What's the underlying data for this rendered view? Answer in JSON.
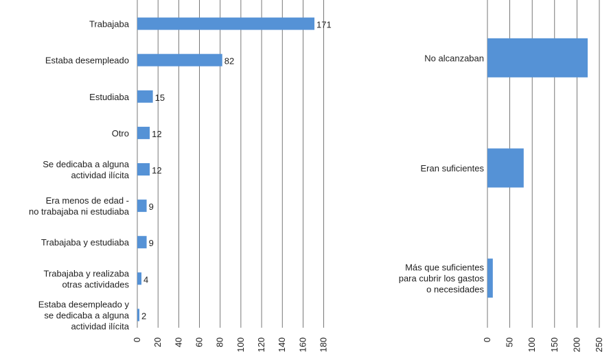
{
  "chart_data": [
    {
      "type": "bar",
      "orientation": "horizontal",
      "color": "#5592d6",
      "grid": true,
      "categories": [
        "Trabajaba",
        "Estaba desempleado",
        "Estudiaba",
        "Otro",
        "Se dedicaba a alguna\nactividad ilícita",
        "Era menos de edad -\nno trabajaba ni estudiaba",
        "Trabajaba y estudiaba",
        "Trabajaba y realizaba\notras actividades",
        "Estaba desempleado y\nse dedicaba a alguna\nactividad ilícita"
      ],
      "values": [
        171,
        82,
        15,
        12,
        12,
        9,
        9,
        4,
        2
      ],
      "xlim": [
        0,
        180
      ],
      "xticks": [
        0,
        20,
        40,
        60,
        80,
        100,
        120,
        140,
        160,
        180
      ]
    },
    {
      "type": "bar",
      "orientation": "horizontal",
      "color": "#5592d6",
      "grid": true,
      "categories": [
        "No alcanzaban",
        "Eran suficientes",
        "Más que suficientes\npara cubrir los gastos\no necesidades"
      ],
      "values": [
        224,
        81,
        12
      ],
      "xlim": [
        0,
        250
      ],
      "xticks": [
        0,
        50,
        100,
        150,
        200,
        250
      ]
    }
  ]
}
